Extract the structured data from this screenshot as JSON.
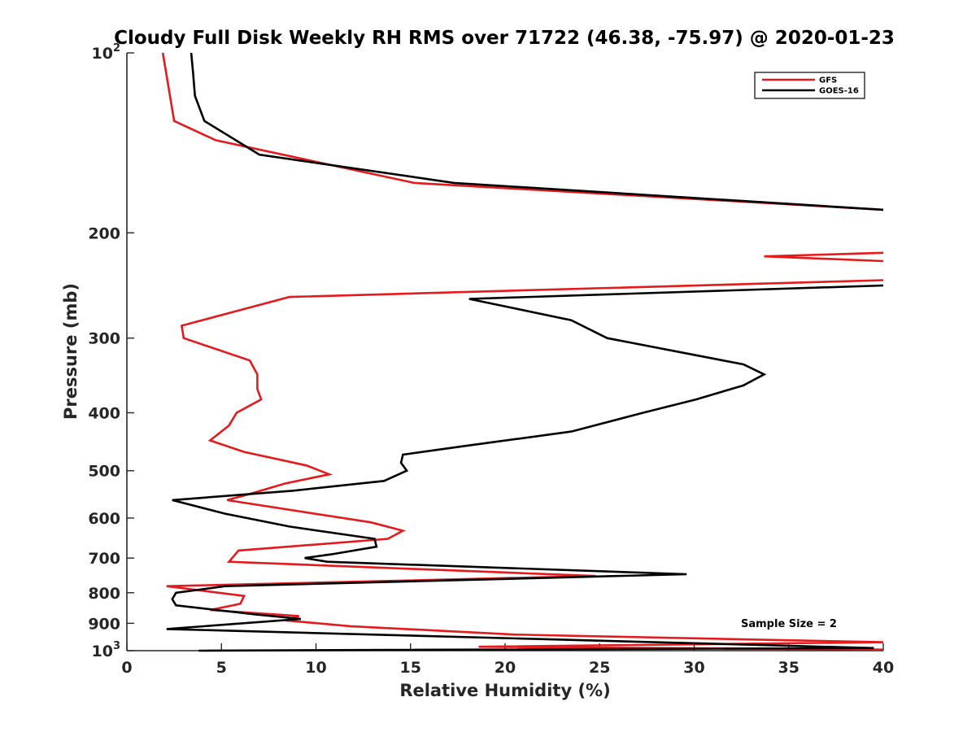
{
  "chart_data": {
    "type": "line",
    "title": "Cloudy Full Disk Weekly RH RMS over 71722 (46.38, -75.97) @ 2020-01-23",
    "xlabel": "Relative Humidity (%)",
    "ylabel": "Pressure (mb)",
    "xlim": [
      0,
      40
    ],
    "ylim": [
      100,
      1000
    ],
    "yscale": "log",
    "y_reversed": true,
    "x_ticks": [
      0,
      5,
      10,
      15,
      20,
      25,
      30,
      35,
      40
    ],
    "x_tick_labels": [
      "0",
      "5",
      "10",
      "15",
      "20",
      "25",
      "30",
      "35",
      "40"
    ],
    "y_ticks": [
      100,
      200,
      300,
      400,
      500,
      600,
      700,
      800,
      900,
      1000
    ],
    "y_tick_labels": [
      "10^2",
      "200",
      "300",
      "400",
      "500",
      "600",
      "700",
      "800",
      "900",
      "10^3"
    ],
    "legend_position": "top-right",
    "annotation": "Sample Size = 2",
    "series": [
      {
        "name": "GFS",
        "color": "#e41a1c",
        "x": [
          1.9,
          2.5,
          4.7,
          15.2,
          40,
          null,
          40,
          33.7,
          40,
          null,
          40,
          8.6,
          2.9,
          3.0,
          6.5,
          6.9,
          6.9,
          7.1,
          5.8,
          5.4,
          4.4,
          6.2,
          9.5,
          10.7,
          8.4,
          6.4,
          5.3,
          12.9,
          14.6,
          13.8,
          5.9,
          5.4,
          24.8,
          2.1,
          6.2,
          6.0,
          4.4,
          9.1,
          8.4,
          11.8,
          20.5,
          40,
          18.6,
          40
        ],
        "y": [
          100,
          130,
          140,
          165,
          183,
          null,
          216,
          219,
          223,
          null,
          240,
          256,
          286,
          300,
          327,
          345,
          365,
          380,
          400,
          420,
          445,
          465,
          490,
          507,
          525,
          548,
          560,
          610,
          630,
          650,
          680,
          710,
          750,
          780,
          810,
          835,
          855,
          875,
          890,
          910,
          940,
          968,
          985,
          996
        ]
      },
      {
        "name": "GOES-16",
        "color": "#000000",
        "x": [
          3.4,
          3.5,
          3.6,
          4.1,
          7.0,
          17.3,
          40,
          null,
          40,
          18.1,
          23.5,
          25.4,
          32.6,
          33.7,
          32.6,
          30.1,
          27.3,
          23.5,
          17.8,
          14.6,
          14.5,
          14.8,
          13.6,
          8.8,
          2.4,
          5.2,
          8.6,
          13.1,
          13.2,
          10.8,
          9.4,
          10.6,
          29.6,
          5.2,
          2.6,
          2.4,
          2.6,
          6.8,
          9.2,
          2.1,
          39.5,
          3.8
        ],
        "y": [
          100,
          108,
          118,
          130,
          148,
          165,
          183,
          null,
          245,
          258,
          280,
          300,
          332,
          345,
          360,
          380,
          400,
          430,
          455,
          470,
          485,
          500,
          520,
          540,
          560,
          590,
          620,
          650,
          670,
          690,
          700,
          710,
          745,
          780,
          800,
          820,
          840,
          870,
          885,
          920,
          990,
          1000
        ]
      }
    ]
  }
}
